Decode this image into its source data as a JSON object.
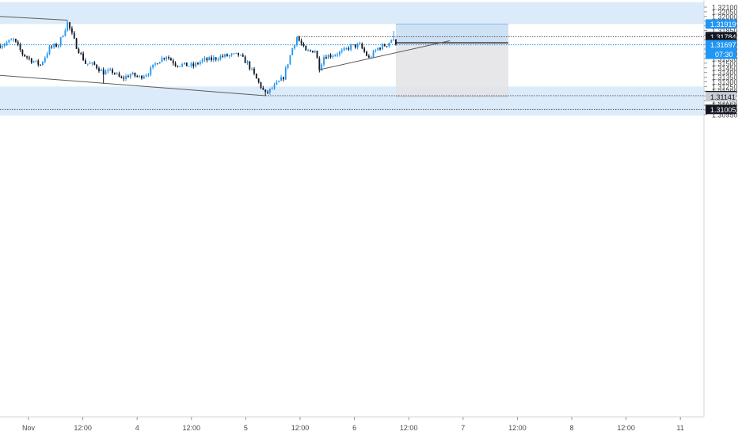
{
  "chart_data": {
    "type": "candlestick",
    "ylim": [
      1.30939,
      1.32153
    ],
    "x_range": [
      0,
      104
    ],
    "price_axis": {
      "ticks": [
        "1.32100",
        "1.32050",
        "1.32000",
        "1.31950",
        "1.31900",
        "1.31850",
        "1.31800",
        "1.31750",
        "1.31700",
        "1.31650",
        "1.31600",
        "1.31550",
        "1.31500",
        "1.31450",
        "1.31400",
        "1.31350",
        "1.31300",
        "1.31250",
        "1.31200",
        "1.31150",
        "1.31100",
        "1.31050",
        "1.31000",
        "1.30950"
      ],
      "tick_values": [
        1.321,
        1.3205,
        1.32,
        1.3195,
        1.319,
        1.3185,
        1.318,
        1.3175,
        1.317,
        1.3165,
        1.316,
        1.3155,
        1.315,
        1.3145,
        1.314,
        1.3135,
        1.313,
        1.3125,
        1.312,
        1.3115,
        1.311,
        1.3105,
        1.31,
        1.3095
      ]
    },
    "time_axis": {
      "labels": [
        "Nov",
        "12:00",
        "4",
        "12:00",
        "5",
        "12:00",
        "6",
        "12:00",
        "7",
        "12:00",
        "8",
        "12:00",
        "11"
      ],
      "positions": [
        0,
        12,
        24,
        36,
        48,
        60,
        72,
        84,
        96,
        108,
        120,
        132,
        144
      ]
    },
    "zones": [
      {
        "name": "supply",
        "from": 1.31919,
        "to": 1.32153,
        "color": "#dcebfa"
      },
      {
        "name": "demand",
        "from": 1.30939,
        "to": 1.3125,
        "color": "#dcebfa"
      }
    ],
    "markers": [
      {
        "price": 1.31919,
        "label": "1.31919",
        "bg": "#2196f3",
        "fg": "#ffffff"
      },
      {
        "price": 1.31784,
        "label": "1.31784",
        "bg": "#131722",
        "fg": "#ffffff"
      },
      {
        "price": 1.31718,
        "label": "1.31718",
        "bg": "#131722",
        "fg": "#ffffff"
      },
      {
        "price": 1.31697,
        "label": "1.31697",
        "sub": "07:30",
        "bg": "#2196f3",
        "fg": "#ffffff"
      },
      {
        "price": 1.31152,
        "label": "1.31152",
        "bg": "#131722",
        "fg": "#ffffff"
      },
      {
        "price": 1.31141,
        "label": "1.31141",
        "bg": "#c9ccd3",
        "fg": "#131722"
      },
      {
        "price": 1.31005,
        "label": "1.31005",
        "bg": "#131722",
        "fg": "#ffffff"
      }
    ],
    "hlines": [
      {
        "price": 1.31784,
        "style": "dotted",
        "color": "#555555",
        "from_x": 66
      },
      {
        "price": 1.31697,
        "style": "dotted",
        "color": "#2196f3",
        "from_x": 0
      },
      {
        "price": 1.31152,
        "style": "dotted",
        "color": "#555555",
        "from_x": 59
      },
      {
        "price": 1.31005,
        "style": "dotted",
        "color": "#555555",
        "from_x": 0
      }
    ],
    "trendlines": [
      {
        "x1": 0,
        "y1": 1.32,
        "x2": 15,
        "y2": 1.3196
      },
      {
        "x1": 0,
        "y1": 1.3137,
        "x2": 59,
        "y2": 1.31152
      },
      {
        "x1": 71,
        "y1": 1.3143,
        "x2": 100,
        "y2": 1.3174
      }
    ],
    "position": {
      "x_start": 88,
      "x_end": 113,
      "entry": 1.31718,
      "target": 1.31919,
      "stop": 1.31141,
      "profit_color": "#c6dcf3",
      "loss_color": "#e3e3e6"
    },
    "anchors": [
      [
        0,
        1.3169
      ],
      [
        3,
        1.3175
      ],
      [
        5,
        1.316
      ],
      [
        7,
        1.3153
      ],
      [
        9,
        1.3148
      ],
      [
        11,
        1.3166
      ],
      [
        13,
        1.317
      ],
      [
        15,
        1.3193
      ],
      [
        17,
        1.3168
      ],
      [
        19,
        1.315
      ],
      [
        21,
        1.3148
      ],
      [
        23,
        1.314
      ],
      [
        25,
        1.3141
      ],
      [
        27,
        1.3133
      ],
      [
        29,
        1.3138
      ],
      [
        31,
        1.3135
      ],
      [
        33,
        1.314
      ],
      [
        35,
        1.3152
      ],
      [
        37,
        1.3158
      ],
      [
        39,
        1.3149
      ],
      [
        41,
        1.3148
      ],
      [
        43,
        1.3147
      ],
      [
        45,
        1.3153
      ],
      [
        47,
        1.3154
      ],
      [
        49,
        1.3157
      ],
      [
        51,
        1.3158
      ],
      [
        53,
        1.3159
      ],
      [
        55,
        1.315
      ],
      [
        57,
        1.3133
      ],
      [
        59,
        1.3117
      ],
      [
        61,
        1.3125
      ],
      [
        63,
        1.3135
      ],
      [
        65,
        1.3166
      ],
      [
        66,
        1.3178
      ],
      [
        68,
        1.3162
      ],
      [
        70,
        1.3164
      ],
      [
        71,
        1.3145
      ],
      [
        72,
        1.3157
      ],
      [
        74,
        1.3159
      ],
      [
        76,
        1.3162
      ],
      [
        78,
        1.3168
      ],
      [
        80,
        1.3169
      ],
      [
        82,
        1.3155
      ],
      [
        84,
        1.3166
      ],
      [
        86,
        1.317
      ],
      [
        87,
        1.3175
      ],
      [
        88,
        1.3172
      ]
    ]
  }
}
